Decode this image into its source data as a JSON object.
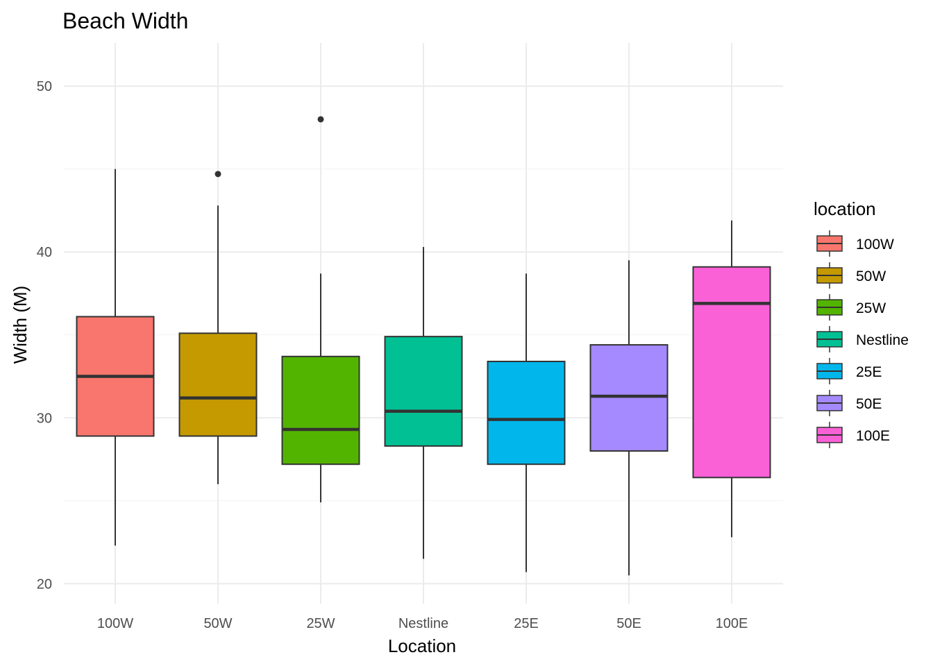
{
  "chart_data": {
    "type": "boxplot",
    "title": "Beach Width",
    "xlabel": "Location",
    "ylabel": "Width (M)",
    "ylim": [
      18.8,
      52.6
    ],
    "yticks": [
      20,
      30,
      40,
      50
    ],
    "grid": true,
    "legend": {
      "title": "location",
      "position": "right"
    },
    "categories": [
      "100W",
      "50W",
      "25W",
      "Nestline",
      "25E",
      "50E",
      "100E"
    ],
    "series": [
      {
        "name": "100W",
        "color": "#F8766D",
        "whisker_low": 22.3,
        "q1": 28.9,
        "median": 32.5,
        "q3": 36.1,
        "whisker_high": 45.0,
        "outliers": []
      },
      {
        "name": "50W",
        "color": "#C49A00",
        "whisker_low": 26.0,
        "q1": 28.9,
        "median": 31.2,
        "q3": 35.1,
        "whisker_high": 42.8,
        "outliers": [
          44.7
        ]
      },
      {
        "name": "25W",
        "color": "#53B400",
        "whisker_low": 24.9,
        "q1": 27.2,
        "median": 29.3,
        "q3": 33.7,
        "whisker_high": 38.7,
        "outliers": [
          48.0
        ]
      },
      {
        "name": "Nestline",
        "color": "#00C094",
        "whisker_low": 21.5,
        "q1": 28.3,
        "median": 30.4,
        "q3": 34.9,
        "whisker_high": 40.3,
        "outliers": []
      },
      {
        "name": "25E",
        "color": "#00B6EB",
        "whisker_low": 20.7,
        "q1": 27.2,
        "median": 29.9,
        "q3": 33.4,
        "whisker_high": 38.7,
        "outliers": []
      },
      {
        "name": "50E",
        "color": "#A58AFF",
        "whisker_low": 20.5,
        "q1": 28.0,
        "median": 31.3,
        "q3": 34.4,
        "whisker_high": 39.5,
        "outliers": []
      },
      {
        "name": "100E",
        "color": "#FB61D7",
        "whisker_low": 22.8,
        "q1": 26.4,
        "median": 36.9,
        "q3": 39.1,
        "whisker_high": 41.9,
        "outliers": []
      }
    ]
  }
}
